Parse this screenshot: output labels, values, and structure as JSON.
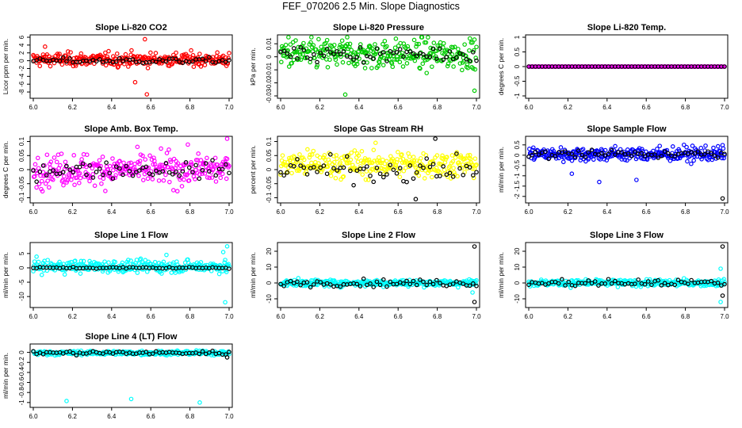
{
  "title": "FEF_070206  2.5 Min. Slope Diagnostics",
  "chart_data": [
    {
      "type": "scatter",
      "title": "Slope Li-820 CO2",
      "ylabel": "Licor ppm per min.",
      "xlabel": "",
      "xlim": [
        6.0,
        7.0
      ],
      "ylim": [
        -9,
        6
      ],
      "xticks": [
        "6.0",
        "6.2",
        "6.4",
        "6.6",
        "6.8",
        "7.0"
      ],
      "yticks": [
        -8,
        -6,
        -4,
        -2,
        0,
        2,
        4,
        6
      ],
      "color": "#ff0000",
      "center": 0.3,
      "spread": 1.2,
      "black_center": 0.0,
      "black_spread": 0.5,
      "outliers": [
        [
          6.58,
          -8.6
        ],
        [
          6.57,
          5.5
        ],
        [
          6.06,
          3.6
        ],
        [
          6.52,
          -5.5
        ]
      ],
      "black_outliers": []
    },
    {
      "type": "scatter",
      "title": "Slope Li-820 Pressure",
      "ylabel": "kPa per min.",
      "xlabel": "",
      "xlim": [
        6.0,
        7.0
      ],
      "ylim": [
        -0.03,
        0.015
      ],
      "xticks": [
        "6.0",
        "6.2",
        "6.4",
        "6.6",
        "6.8",
        "7.0"
      ],
      "yticks": [
        -0.03,
        -0.02,
        -0.01,
        0.0,
        0.01
      ],
      "color": "#00cc00",
      "center": 0.002,
      "spread": 0.008,
      "black_center": 0.002,
      "black_spread": 0.004,
      "outliers": [
        [
          6.33,
          -0.029
        ],
        [
          6.99,
          -0.026
        ],
        [
          6.04,
          0.015
        ],
        [
          6.34,
          0.016
        ]
      ],
      "black_outliers": []
    },
    {
      "type": "scatter",
      "title": "Slope Li-820 Temp.",
      "ylabel": "degrees C per min.",
      "xlabel": "",
      "xlim": [
        6.0,
        7.0
      ],
      "ylim": [
        -1,
        1
      ],
      "xticks": [
        "6.0",
        "6.2",
        "6.4",
        "6.6",
        "6.8",
        "7.0"
      ],
      "yticks": [
        -1.0,
        -0.5,
        0.0,
        0.5,
        1.0
      ],
      "color": "#ff00ff",
      "center": 0.0,
      "spread": 0.0,
      "black_center": 0.0,
      "black_spread": 0.0,
      "outliers": [],
      "black_outliers": []
    },
    {
      "type": "scatter",
      "title": "Slope Amb. Box Temp.",
      "ylabel": "degrees C per min.",
      "xlabel": "",
      "xlim": [
        6.0,
        7.0
      ],
      "ylim": [
        -0.11,
        0.11
      ],
      "xticks": [
        "6.0",
        "6.2",
        "6.4",
        "6.6",
        "6.8",
        "7.0"
      ],
      "yticks": [
        -0.1,
        -0.05,
        0.0,
        0.05,
        0.1
      ],
      "color": "#ff00ff",
      "center": 0.0,
      "spread": 0.04,
      "black_center": 0.0,
      "black_spread": 0.02,
      "outliers": [
        [
          6.99,
          0.11
        ]
      ],
      "black_outliers": []
    },
    {
      "type": "scatter",
      "title": "Slope Gas Stream RH",
      "ylabel": "percent per min.",
      "xlabel": "",
      "xlim": [
        6.0,
        7.0
      ],
      "ylim": [
        -0.11,
        0.11
      ],
      "xticks": [
        "6.0",
        "6.2",
        "6.4",
        "6.6",
        "6.8",
        "7.0"
      ],
      "yticks": [
        -0.1,
        -0.05,
        0.0,
        0.05,
        0.1
      ],
      "color": "#ffff00",
      "center": 0.02,
      "spread": 0.035,
      "black_center": 0.0,
      "black_spread": 0.03,
      "outliers": [],
      "black_outliers": [
        [
          6.79,
          0.11
        ],
        [
          6.69,
          -0.105
        ]
      ]
    },
    {
      "type": "scatter",
      "title": "Slope Sample Flow",
      "ylabel": "ml/min per min.",
      "xlabel": "",
      "xlim": [
        6.0,
        7.0
      ],
      "ylim": [
        -2.2,
        0.8
      ],
      "xticks": [
        "6.0",
        "6.2",
        "6.4",
        "6.6",
        "6.8",
        "7.0"
      ],
      "yticks": [
        -2.0,
        -1.5,
        -1.0,
        -0.5,
        0.0,
        0.5
      ],
      "color": "#0000ff",
      "center": 0.05,
      "spread": 0.25,
      "black_center": 0.05,
      "black_spread": 0.15,
      "outliers": [
        [
          6.36,
          -1.3
        ],
        [
          6.55,
          -1.2
        ],
        [
          6.22,
          -0.9
        ]
      ],
      "black_outliers": [
        [
          6.99,
          -2.1
        ]
      ]
    },
    {
      "type": "scatter",
      "title": "Slope Line 1 Flow",
      "ylabel": "ml/min per min.",
      "xlabel": "",
      "xlim": [
        6.0,
        7.0
      ],
      "ylim": [
        -13,
        8
      ],
      "xticks": [
        "6.0",
        "6.2",
        "6.4",
        "6.6",
        "6.8",
        "7.0"
      ],
      "yticks": [
        -10,
        -5,
        0,
        5
      ],
      "color": "#00ffff",
      "center": 0.5,
      "spread": 1.5,
      "black_center": 0.0,
      "black_spread": 0.2,
      "outliers": [
        [
          6.98,
          -12
        ],
        [
          6.99,
          7.5
        ],
        [
          6.97,
          5.5
        ],
        [
          6.68,
          4.5
        ]
      ],
      "black_outliers": []
    },
    {
      "type": "scatter",
      "title": "Slope Line 2 Flow",
      "ylabel": "ml/min per min.",
      "xlabel": "",
      "xlim": [
        6.0,
        7.0
      ],
      "ylim": [
        -14,
        24
      ],
      "xticks": [
        "6.0",
        "6.2",
        "6.4",
        "6.6",
        "6.8",
        "7.0"
      ],
      "yticks": [
        -10,
        0,
        10,
        20
      ],
      "color": "#00ffff",
      "center": 0.0,
      "spread": 1.5,
      "black_center": 0.0,
      "black_spread": 1.5,
      "outliers": [
        [
          6.98,
          -6
        ]
      ],
      "black_outliers": [
        [
          6.99,
          23
        ],
        [
          6.99,
          -12
        ]
      ]
    },
    {
      "type": "scatter",
      "title": "Slope Line 3 Flow",
      "ylabel": "ml/min per min.",
      "xlabel": "",
      "xlim": [
        6.0,
        7.0
      ],
      "ylim": [
        -14,
        24
      ],
      "xticks": [
        "6.0",
        "6.2",
        "6.4",
        "6.6",
        "6.8",
        "7.0"
      ],
      "yticks": [
        -10,
        0,
        10,
        20
      ],
      "color": "#00ffff",
      "center": 0.0,
      "spread": 1.5,
      "black_center": 0.0,
      "black_spread": 1.5,
      "outliers": [
        [
          6.98,
          -12
        ],
        [
          6.98,
          9
        ]
      ],
      "black_outliers": [
        [
          6.99,
          23
        ],
        [
          6.99,
          -8
        ]
      ]
    },
    {
      "type": "scatter",
      "title": "Slope Line 4 (LT) Flow",
      "ylabel": "ml/min per min.",
      "xlabel": "",
      "xlim": [
        6.0,
        7.0
      ],
      "ylim": [
        -1.05,
        0.12
      ],
      "xticks": [
        "6.0",
        "6.2",
        "6.4",
        "6.6",
        "6.8",
        "7.0"
      ],
      "yticks": [
        -1.0,
        -0.8,
        -0.6,
        -0.4,
        -0.2,
        0.0
      ],
      "color": "#00ffff",
      "center": -0.01,
      "spread": 0.03,
      "black_center": -0.01,
      "black_spread": 0.03,
      "outliers": [
        [
          6.17,
          -0.97
        ],
        [
          6.5,
          -0.93
        ],
        [
          6.85,
          -1.0
        ]
      ],
      "black_outliers": [
        [
          6.99,
          -0.1
        ]
      ]
    }
  ]
}
